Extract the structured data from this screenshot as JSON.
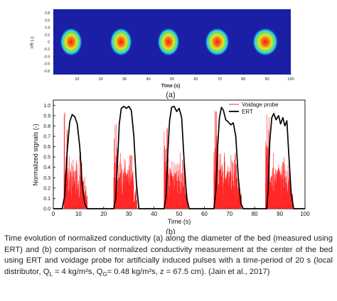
{
  "panel_a": {
    "label": "(a)",
    "ylabel": "r/R (-)",
    "xlabel": "Time (s)",
    "y_ticks": [
      "0.8",
      "0.6",
      "0.4",
      "0.2",
      "0",
      "-0.2",
      "-0.4",
      "-0.6",
      "-0.8"
    ],
    "x_ticks": [
      "10",
      "20",
      "30",
      "40",
      "50",
      "60",
      "70",
      "80",
      "90",
      "100"
    ],
    "colors": {
      "background": "#1a1fa5",
      "mid": "#2bd0e8",
      "hot": "#e8231a"
    }
  },
  "panel_b": {
    "label": "(b)",
    "legend_voidage": "Voidage probe",
    "legend_ert": "ERT",
    "colors": {
      "voidage": "#ff1010",
      "ert": "#000000"
    }
  },
  "caption_text": "Time evolution of normalized conductivity (a) along the diameter of the bed (measured using ERT) and (b) comparison of normalized conductivity measurement at the center of the bed using ERT and voidage probe for artificially induced pulses with a time-period of 20 s (local distributor, Q",
  "caption_ql_sub": "L",
  "caption_mid1": " = 4 kg/m²s, Q",
  "caption_qg_sub": "G",
  "caption_mid2": "= 0.48 kg/m²s, z = 67.5 cm). (Jain et al., 2017)",
  "chart_data": [
    {
      "type": "heatmap",
      "xlabel": "Time (s)",
      "ylabel": "r/R (-)",
      "xlim": [
        0,
        100
      ],
      "ylim": [
        -0.9,
        0.9
      ],
      "x_ticks": [
        10,
        20,
        30,
        40,
        50,
        60,
        70,
        80,
        90,
        100
      ],
      "y_ticks": [
        0.8,
        0.6,
        0.4,
        0.2,
        0,
        -0.2,
        -0.4,
        -0.6,
        -0.8
      ],
      "blobs": [
        {
          "t_start": 4.5,
          "t_end": 10.5,
          "r_half": 0.28
        },
        {
          "t_start": 25.5,
          "t_end": 31.5,
          "r_half": 0.28
        },
        {
          "t_start": 45.5,
          "t_end": 51.5,
          "r_half": 0.28
        },
        {
          "t_start": 65.5,
          "t_end": 72.5,
          "r_half": 0.28
        },
        {
          "t_start": 85.5,
          "t_end": 93,
          "r_half": 0.28
        }
      ]
    },
    {
      "type": "line",
      "xlabel": "Time (s)",
      "ylabel": "Normalized signals (-)",
      "xlim": [
        0,
        100
      ],
      "ylim": [
        0,
        1.05
      ],
      "x_ticks": [
        0,
        10,
        20,
        30,
        40,
        50,
        60,
        70,
        80,
        90,
        100
      ],
      "y_ticks": [
        0.0,
        0.1,
        0.2,
        0.3,
        0.4,
        0.5,
        0.6,
        0.7,
        0.8,
        0.9,
        1.0
      ],
      "legend": "top-right",
      "series": [
        {
          "name": "ERT",
          "x": [
            0,
            3.5,
            4.5,
            5.5,
            6.5,
            7.5,
            8.5,
            9.5,
            10.5,
            11.5,
            12.5,
            13.5,
            24,
            24.8,
            25.5,
            26.2,
            27,
            28,
            29,
            30,
            31,
            32,
            33,
            34,
            44,
            44.8,
            45.5,
            46.2,
            47,
            48,
            49,
            50,
            51,
            52,
            53,
            54,
            63.8,
            64.6,
            65.3,
            66,
            66.8,
            67.6,
            68.5,
            69.5,
            70.5,
            71.5,
            72.5,
            73.5,
            74.5,
            75.5,
            84.8,
            85.4,
            86,
            86.8,
            87.6,
            88.5,
            89.5,
            90.3,
            91.2,
            92,
            92.8,
            93.5,
            94.5,
            95.5,
            100
          ],
          "y": [
            0,
            0,
            0.12,
            0.55,
            0.84,
            0.91,
            0.89,
            0.82,
            0.6,
            0.22,
            0.05,
            0,
            0,
            0.1,
            0.45,
            0.82,
            0.97,
            0.99,
            0.97,
            0.99,
            0.95,
            0.7,
            0.25,
            0,
            0,
            0.12,
            0.55,
            0.85,
            0.98,
            0.99,
            0.94,
            0.97,
            0.88,
            0.45,
            0.1,
            0,
            0,
            0.18,
            0.6,
            0.88,
            0.98,
            0.95,
            0.86,
            0.84,
            0.81,
            0.83,
            0.7,
            0.3,
            0.05,
            0,
            0,
            0.2,
            0.65,
            0.88,
            0.92,
            0.86,
            0.9,
            0.82,
            0.88,
            0.8,
            0.85,
            0.55,
            0.15,
            0,
            0
          ]
        },
        {
          "name": "Voidage probe",
          "bursts": [
            {
              "t_start": 4.2,
              "t_end": 13.5,
              "peak": 0.95
            },
            {
              "t_start": 24,
              "t_end": 33.2,
              "peak": 0.88
            },
            {
              "t_start": 44,
              "t_end": 53.5,
              "peak": 0.88
            },
            {
              "t_start": 63.8,
              "t_end": 74.8,
              "peak": 0.96
            },
            {
              "t_start": 84.3,
              "t_end": 95.2,
              "peak": 0.95
            }
          ]
        }
      ]
    }
  ]
}
